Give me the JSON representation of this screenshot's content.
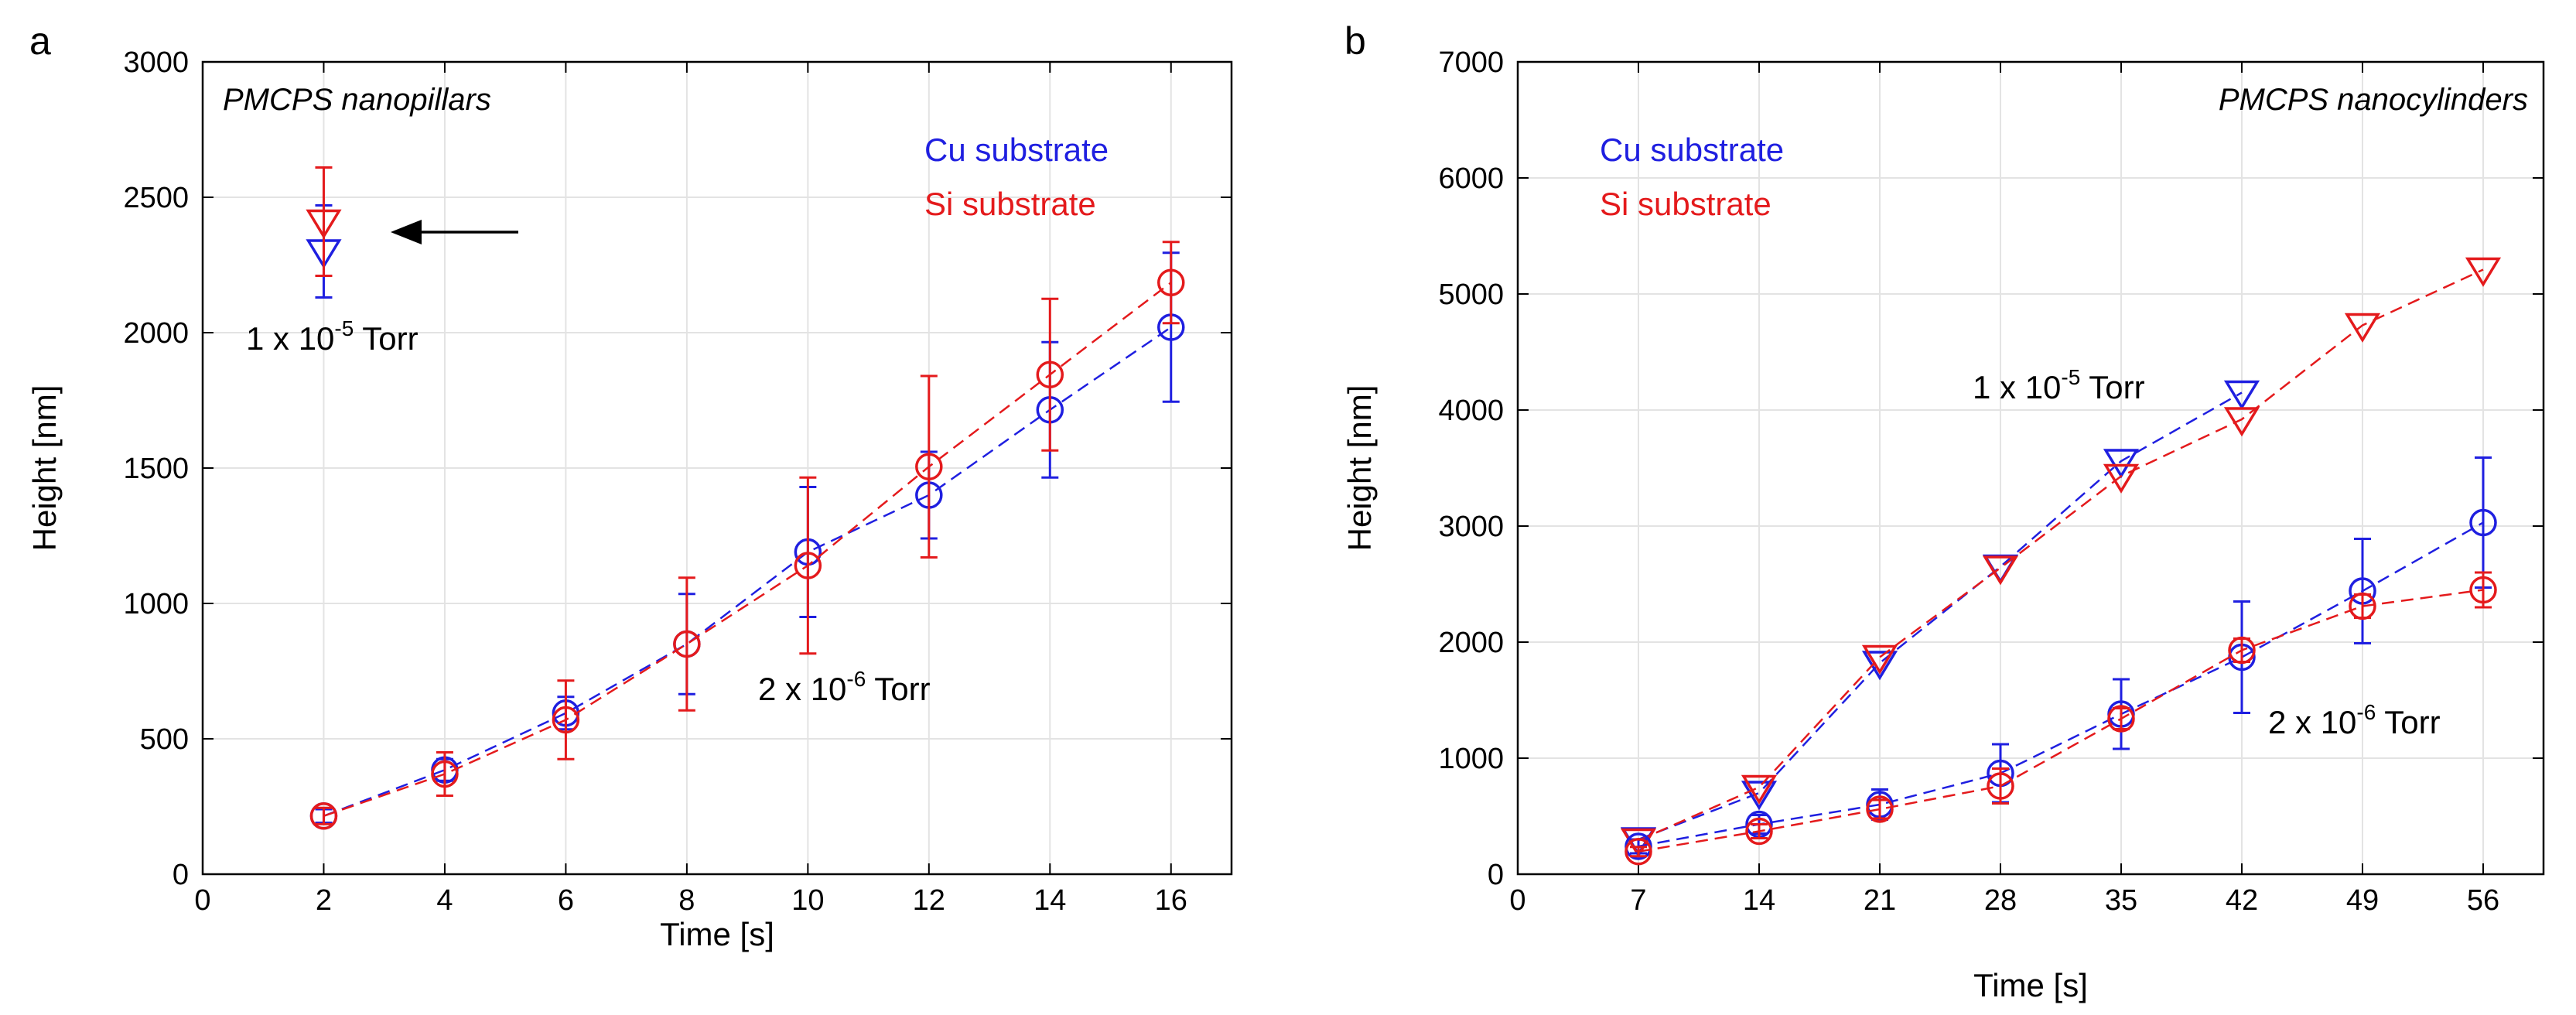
{
  "chart_data": [
    {
      "type": "line",
      "panel_label": "a",
      "note": "PMCPS nanopillars",
      "xlabel": "Time [s]",
      "ylabel": "Height [nm]",
      "xlim": [
        0,
        17
      ],
      "ylim": [
        0,
        3000
      ],
      "xticks": [
        0,
        2,
        4,
        6,
        8,
        10,
        12,
        14,
        16
      ],
      "yticks": [
        0,
        500,
        1000,
        1500,
        2000,
        2500,
        3000
      ],
      "grid": true,
      "legend": [
        {
          "label": "Cu substrate",
          "color": "#1f1fe0"
        },
        {
          "label": "Si substrate",
          "color": "#e41a1c"
        }
      ],
      "annotations": [
        {
          "text": "1 x 10",
          "sup": "-5",
          "suffix": " Torr",
          "at": [
            2.5,
            1970
          ]
        },
        {
          "text": "2 x 10",
          "sup": "-6",
          "suffix": " Torr",
          "at": [
            11.2,
            680
          ]
        }
      ],
      "arrow": {
        "from": [
          5.3,
          2370
        ],
        "to": [
          3.1,
          2370
        ]
      },
      "series": [
        {
          "name": "Cu 2e-6",
          "color": "#1f1fe0",
          "marker": "circle",
          "line": true,
          "x": [
            2,
            4,
            6,
            8,
            10,
            12,
            14,
            16
          ],
          "y": [
            215,
            385,
            595,
            850,
            1190,
            1400,
            1715,
            2020
          ],
          "err": [
            25,
            40,
            60,
            185,
            240,
            160,
            250,
            275
          ]
        },
        {
          "name": "Si 2e-6",
          "color": "#e41a1c",
          "marker": "circle",
          "line": true,
          "x": [
            2,
            4,
            6,
            8,
            10,
            12,
            14,
            16
          ],
          "y": [
            215,
            370,
            570,
            850,
            1140,
            1505,
            1845,
            2185
          ],
          "err": [
            30,
            80,
            145,
            245,
            325,
            335,
            280,
            150
          ]
        },
        {
          "name": "Cu 1e-5",
          "color": "#1f1fe0",
          "marker": "triangle",
          "line": false,
          "x": [
            2
          ],
          "y": [
            2300
          ],
          "err": [
            170
          ]
        },
        {
          "name": "Si 1e-5",
          "color": "#e41a1c",
          "marker": "triangle",
          "line": false,
          "x": [
            2
          ],
          "y": [
            2410
          ],
          "err": [
            200
          ]
        }
      ]
    },
    {
      "type": "line",
      "panel_label": "b",
      "note": "PMCPS nanocylinders",
      "xlabel": "Time [s]",
      "ylabel": "Height [nm]",
      "xlim": [
        0,
        59.5
      ],
      "ylim": [
        0,
        7000
      ],
      "xticks": [
        0,
        7,
        14,
        21,
        28,
        35,
        42,
        49,
        56
      ],
      "yticks": [
        0,
        1000,
        2000,
        3000,
        4000,
        5000,
        6000,
        7000
      ],
      "grid": true,
      "legend": [
        {
          "label": "Cu substrate",
          "color": "#1f1fe0"
        },
        {
          "label": "Si substrate",
          "color": "#e41a1c"
        }
      ],
      "annotations": [
        {
          "text": "1 x 10",
          "sup": "-5",
          "suffix": " Torr",
          "at": [
            32,
            4180
          ]
        },
        {
          "text": "2 x 10",
          "sup": "-6",
          "suffix": " Torr",
          "at": [
            46.5,
            1150
          ]
        }
      ],
      "series": [
        {
          "name": "Cu 1e-5",
          "color": "#1f1fe0",
          "marker": "triangle",
          "line": true,
          "x": [
            7,
            14,
            21,
            28,
            35,
            42
          ],
          "y": [
            300,
            700,
            1820,
            2650,
            3560,
            4150
          ],
          "err": [
            0,
            0,
            0,
            0,
            0,
            0
          ]
        },
        {
          "name": "Si 1e-5",
          "color": "#e41a1c",
          "marker": "triangle",
          "line": true,
          "x": [
            7,
            14,
            21,
            28,
            35,
            42,
            49,
            56
          ],
          "y": [
            290,
            750,
            1870,
            2640,
            3430,
            3920,
            4730,
            5210
          ],
          "err": [
            0,
            0,
            0,
            0,
            0,
            0,
            0,
            0
          ]
        },
        {
          "name": "Cu 2e-6",
          "color": "#1f1fe0",
          "marker": "circle",
          "line": true,
          "x": [
            7,
            14,
            21,
            28,
            35,
            42,
            49,
            56
          ],
          "y": [
            240,
            430,
            600,
            870,
            1380,
            1870,
            2440,
            3030
          ],
          "err": [
            60,
            80,
            130,
            250,
            300,
            480,
            450,
            560
          ]
        },
        {
          "name": "Si 2e-6",
          "color": "#e41a1c",
          "marker": "circle",
          "line": true,
          "x": [
            7,
            14,
            21,
            28,
            35,
            42,
            49,
            56
          ],
          "y": [
            195,
            370,
            560,
            760,
            1340,
            1930,
            2310,
            2450
          ],
          "err": [
            40,
            60,
            80,
            150,
            90,
            100,
            100,
            150
          ]
        }
      ]
    }
  ]
}
